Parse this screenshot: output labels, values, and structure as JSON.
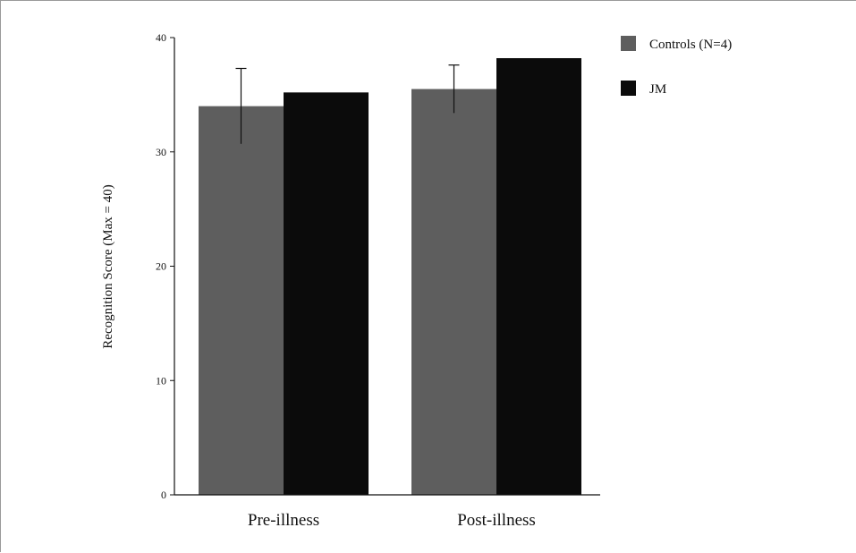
{
  "chart_data": {
    "type": "bar",
    "categories": [
      "Pre-illness",
      "Post-illness"
    ],
    "series": [
      {
        "name": "Controls (N=4)",
        "values": [
          34,
          35.5
        ],
        "error": [
          3.3,
          2.1
        ],
        "color": "#5e5e5e"
      },
      {
        "name": "JM",
        "values": [
          35.2,
          38.2
        ],
        "color": "#0b0b0b"
      }
    ],
    "xlabel": "",
    "ylabel": "Recognition Score (Max = 40)",
    "ylim": [
      0,
      40
    ],
    "yticks": [
      "0",
      "10",
      "20",
      "30",
      "40"
    ],
    "grid": false,
    "legend_position": "top-right"
  }
}
